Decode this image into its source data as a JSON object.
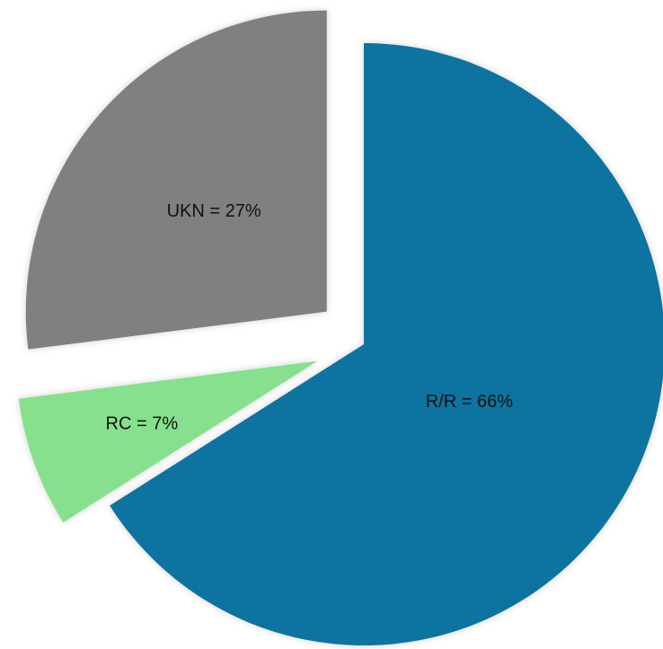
{
  "chart_data": {
    "type": "pie",
    "values": [
      66,
      7,
      27
    ],
    "value_labels": [
      "R/R = 66%",
      "RC = 7%",
      "UKN = 27%"
    ],
    "colors": [
      "#0e73a0",
      "#86e08e",
      "#808080"
    ]
  }
}
